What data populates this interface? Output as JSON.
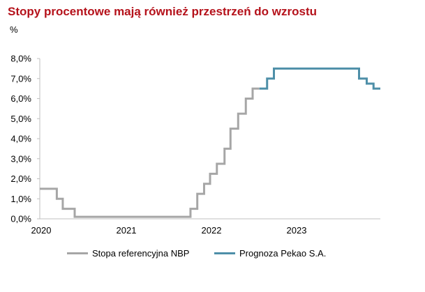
{
  "title": "Stopy procentowe mają również przestrzeń do wzrostu",
  "unit_label": "%",
  "colors": {
    "title": "#b5121b",
    "nbp": "#a6a6a6",
    "pekao": "#4e8fa8",
    "axis": "#bfbfbf"
  },
  "chart_data": {
    "type": "line",
    "title": "Stopy procentowe mają również przestrzeń do wzrostu",
    "ylabel": "%",
    "ylim": [
      0,
      8
    ],
    "xlim": [
      2020.0,
      2024.0
    ],
    "yticks": [
      "0,0%",
      "1,0%",
      "2,0%",
      "3,0%",
      "4,0%",
      "5,0%",
      "6,0%",
      "7,0%",
      "8,0%"
    ],
    "xticks": [
      {
        "x": 2020,
        "label": "2020"
      },
      {
        "x": 2021,
        "label": "2021"
      },
      {
        "x": 2022,
        "label": "2022"
      },
      {
        "x": 2023,
        "label": "2023"
      }
    ],
    "grid": false,
    "legend_position": "bottom",
    "series": [
      {
        "name": "Stopa referencyjna NBP",
        "step": true,
        "x": [
          2020.0,
          2020.2,
          2020.27,
          2020.41,
          2021.77,
          2021.85,
          2021.93,
          2022.0,
          2022.08,
          2022.17,
          2022.24,
          2022.33,
          2022.42,
          2022.5,
          2022.58
        ],
        "y": [
          1.5,
          1.0,
          0.5,
          0.1,
          0.5,
          1.25,
          1.75,
          2.25,
          2.75,
          3.5,
          4.5,
          5.25,
          6.0,
          6.5,
          6.5
        ]
      },
      {
        "name": "Prognoza Pekao S.A.",
        "step": true,
        "x": [
          2022.58,
          2022.67,
          2022.75,
          2023.75,
          2023.84,
          2023.92,
          2024.0
        ],
        "y": [
          6.5,
          7.0,
          7.5,
          7.0,
          6.75,
          6.5,
          6.5
        ]
      }
    ]
  }
}
